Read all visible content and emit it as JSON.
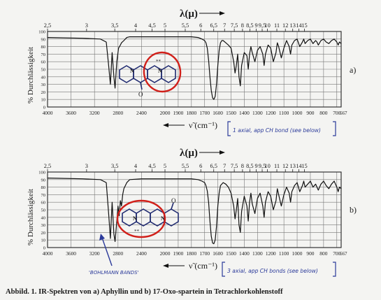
{
  "figure": {
    "caption": "Abbild. 1. IR-Spektren von a) Aphyllin und b) 17-Oxo-spartein in Tetrachlorkohlenstoff"
  },
  "chart_data": [
    {
      "type": "line",
      "panel_label": "a)",
      "top_axis_label": "λ(μ)",
      "top_ticks": [
        "2,5",
        "3",
        "3,5",
        "4",
        "4,5",
        "5",
        "5,5",
        "6",
        "6,5",
        "7",
        "7,5",
        "8",
        "8,5",
        "9",
        "9,5",
        "10",
        "11",
        "12",
        "13",
        "14",
        "15"
      ],
      "bottom_axis_label": "ν̃ (cm⁻¹)",
      "bottom_ticks": [
        "4000",
        "3600",
        "3200",
        "2800",
        "2400",
        "2000",
        "1900",
        "1800",
        "1700",
        "1600",
        "1500",
        "1400",
        "1300",
        "1200",
        "1100",
        "1000",
        "900",
        "800",
        "700"
      ],
      "ylabel": "% Durchlässigkeit",
      "yticks": [
        "0",
        "10",
        "20",
        "30",
        "40",
        "50",
        "60",
        "70",
        "80",
        "90",
        "100"
      ],
      "xlim": [
        4000,
        667
      ],
      "ylim": [
        0,
        100
      ],
      "corner_label": "667",
      "annotation": "1 axial, app CH bond (see below)",
      "x": [
        4000,
        3400,
        3100,
        3000,
        2960,
        2930,
        2900,
        2870,
        2850,
        2820,
        2790,
        2760,
        2740,
        2700,
        2650,
        2600,
        2400,
        2200,
        2100,
        2000,
        1900,
        1800,
        1750,
        1720,
        1700,
        1690,
        1680,
        1670,
        1660,
        1650,
        1640,
        1630,
        1620,
        1610,
        1600,
        1590,
        1580,
        1570,
        1560,
        1540,
        1520,
        1500,
        1480,
        1470,
        1460,
        1450,
        1440,
        1430,
        1420,
        1400,
        1380,
        1370,
        1360,
        1350,
        1340,
        1320,
        1300,
        1280,
        1260,
        1250,
        1240,
        1220,
        1200,
        1180,
        1160,
        1150,
        1140,
        1120,
        1100,
        1080,
        1060,
        1050,
        1040,
        1020,
        1000,
        980,
        960,
        950,
        940,
        920,
        900,
        880,
        860,
        850,
        840,
        820,
        800,
        780,
        760,
        740,
        720,
        700,
        690,
        680,
        667
      ],
      "y": [
        92,
        91,
        90,
        86,
        55,
        30,
        72,
        40,
        25,
        60,
        78,
        82,
        85,
        88,
        92,
        93,
        93,
        93,
        93,
        93,
        93,
        93,
        92,
        90,
        88,
        85,
        78,
        62,
        40,
        22,
        12,
        10,
        14,
        30,
        55,
        75,
        85,
        88,
        88,
        85,
        82,
        78,
        60,
        45,
        55,
        70,
        40,
        28,
        55,
        72,
        68,
        50,
        70,
        80,
        72,
        60,
        75,
        80,
        70,
        55,
        70,
        82,
        78,
        60,
        72,
        85,
        80,
        65,
        78,
        88,
        80,
        70,
        82,
        88,
        90,
        80,
        86,
        90,
        84,
        88,
        90,
        84,
        88,
        86,
        82,
        88,
        90,
        86,
        84,
        88,
        90,
        86,
        82,
        86,
        84
      ]
    },
    {
      "type": "line",
      "panel_label": "b)",
      "top_axis_label": "λ(μ)",
      "top_ticks": [
        "2,5",
        "3",
        "3,5",
        "4",
        "4,5",
        "5",
        "5,5",
        "6",
        "6,5",
        "7",
        "7,5",
        "8",
        "8,5",
        "9",
        "9,5",
        "10",
        "11",
        "12",
        "13",
        "14",
        "15"
      ],
      "bottom_axis_label": "ν̃ (cm⁻¹)",
      "bottom_ticks": [
        "4000",
        "3600",
        "3200",
        "2800",
        "2400",
        "2000",
        "1900",
        "1800",
        "1700",
        "1600",
        "1500",
        "1400",
        "1300",
        "1200",
        "1100",
        "1000",
        "900",
        "800",
        "700"
      ],
      "ylabel": "% Durchlässigkeit",
      "yticks": [
        "0",
        "10",
        "20",
        "30",
        "40",
        "50",
        "60",
        "70",
        "80",
        "90",
        "100"
      ],
      "xlim": [
        4000,
        667
      ],
      "ylim": [
        0,
        100
      ],
      "corner_label": "667",
      "annotation": "3 axial, app CH bonds (see below)",
      "annotation_2": "'BOHLMANN BANDS'",
      "x": [
        4000,
        3400,
        3100,
        3000,
        2960,
        2930,
        2900,
        2870,
        2850,
        2820,
        2800,
        2780,
        2760,
        2740,
        2720,
        2700,
        2650,
        2600,
        2400,
        2200,
        2100,
        2000,
        1900,
        1800,
        1750,
        1720,
        1700,
        1690,
        1680,
        1670,
        1660,
        1650,
        1640,
        1630,
        1620,
        1610,
        1600,
        1590,
        1580,
        1560,
        1540,
        1520,
        1500,
        1480,
        1470,
        1460,
        1450,
        1440,
        1430,
        1420,
        1400,
        1380,
        1370,
        1360,
        1350,
        1340,
        1320,
        1300,
        1280,
        1260,
        1250,
        1240,
        1220,
        1200,
        1180,
        1160,
        1150,
        1140,
        1120,
        1100,
        1080,
        1060,
        1050,
        1040,
        1020,
        1000,
        980,
        960,
        950,
        940,
        920,
        900,
        880,
        860,
        850,
        840,
        820,
        800,
        780,
        760,
        740,
        720,
        700,
        690,
        680,
        667
      ],
      "y": [
        92,
        91,
        90,
        86,
        45,
        12,
        60,
        18,
        8,
        35,
        55,
        42,
        62,
        55,
        70,
        78,
        86,
        90,
        91,
        91,
        91,
        91,
        91,
        91,
        90,
        88,
        86,
        82,
        75,
        60,
        35,
        15,
        6,
        5,
        10,
        28,
        55,
        72,
        82,
        86,
        84,
        80,
        72,
        55,
        38,
        50,
        65,
        30,
        20,
        48,
        68,
        55,
        35,
        60,
        72,
        58,
        45,
        65,
        72,
        55,
        40,
        60,
        74,
        68,
        50,
        62,
        78,
        70,
        55,
        70,
        80,
        72,
        60,
        74,
        82,
        86,
        74,
        82,
        88,
        80,
        84,
        88,
        80,
        84,
        80,
        76,
        84,
        88,
        82,
        78,
        84,
        88,
        80,
        74,
        80,
        78
      ]
    }
  ]
}
